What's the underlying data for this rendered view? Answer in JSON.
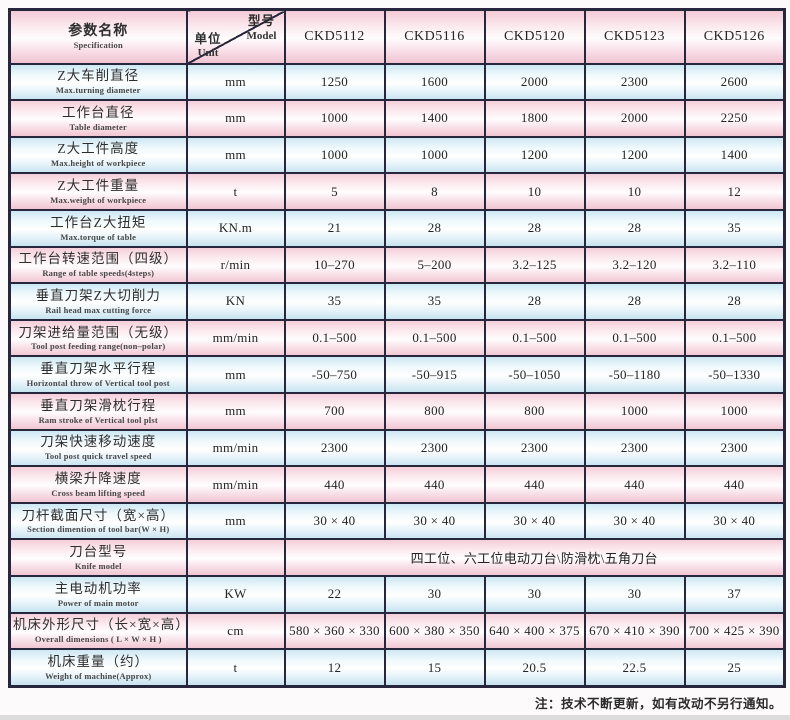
{
  "header": {
    "param_title_cn": "参数名称",
    "param_title_en": "Specification",
    "corner_top_cn": "型号",
    "corner_top_en": "Model",
    "corner_bottom_cn": "单位",
    "corner_bottom_en": "Unit",
    "models": [
      "CKD5112",
      "CKD5116",
      "CKD5120",
      "CKD5123",
      "CKD5126"
    ]
  },
  "rows": [
    {
      "cn": "Z大车削直径",
      "en": "Max.turning diameter",
      "unit": "mm",
      "values": [
        "1250",
        "1600",
        "2000",
        "2300",
        "2600"
      ]
    },
    {
      "cn": "工作台直径",
      "en": "Table diameter",
      "unit": "mm",
      "values": [
        "1000",
        "1400",
        "1800",
        "2000",
        "2250"
      ]
    },
    {
      "cn": "Z大工件高度",
      "en": "Max.height of workpiece",
      "unit": "mm",
      "values": [
        "1000",
        "1000",
        "1200",
        "1200",
        "1400"
      ]
    },
    {
      "cn": "Z大工件重量",
      "en": "Max.weight of workpiece",
      "unit": "t",
      "values": [
        "5",
        "8",
        "10",
        "10",
        "12"
      ]
    },
    {
      "cn": "工作台Z大扭矩",
      "en": "Max.torque of table",
      "unit": "KN.m",
      "values": [
        "21",
        "28",
        "28",
        "28",
        "35"
      ]
    },
    {
      "cn": "工作台转速范围（四级）",
      "en": "Range of table speeds(4steps)",
      "unit": "r/min",
      "values": [
        "10–270",
        "5–200",
        "3.2–125",
        "3.2–120",
        "3.2–110"
      ]
    },
    {
      "cn": "垂直刀架Z大切削力",
      "en": "Rail head max cutting force",
      "unit": "KN",
      "values": [
        "35",
        "35",
        "28",
        "28",
        "28"
      ]
    },
    {
      "cn": "刀架进给量范围（无级）",
      "en": "Tool post feeding range(non–polar)",
      "unit": "mm/min",
      "values": [
        "0.1–500",
        "0.1–500",
        "0.1–500",
        "0.1–500",
        "0.1–500"
      ]
    },
    {
      "cn": "垂直刀架水平行程",
      "en": "Horizontal throw of Vertical tool post",
      "unit": "mm",
      "values": [
        "-50–750",
        "-50–915",
        "-50–1050",
        "-50–1180",
        "-50–1330"
      ]
    },
    {
      "cn": "垂直刀架滑枕行程",
      "en": "Ram stroke of Vertical tool plst",
      "unit": "mm",
      "values": [
        "700",
        "800",
        "800",
        "1000",
        "1000"
      ]
    },
    {
      "cn": "刀架快速移动速度",
      "en": "Tool post quick travel speed",
      "unit": "mm/min",
      "values": [
        "2300",
        "2300",
        "2300",
        "2300",
        "2300"
      ]
    },
    {
      "cn": "横梁升降速度",
      "en": "Cross beam lifting speed",
      "unit": "mm/min",
      "values": [
        "440",
        "440",
        "440",
        "440",
        "440"
      ]
    },
    {
      "cn": "刀杆截面尺寸（宽×高）",
      "en": "Section dimention of tool bar(W × H)",
      "unit": "mm",
      "values": [
        "30 × 40",
        "30 × 40",
        "30 × 40",
        "30 × 40",
        "30 × 40"
      ]
    },
    {
      "cn": "刀台型号",
      "en": "Knife model",
      "unit": "",
      "span": "四工位、六工位电动刀台\\防滑枕\\五角刀台"
    },
    {
      "cn": "主电动机功率",
      "en": "Power of main motor",
      "unit": "KW",
      "values": [
        "22",
        "30",
        "30",
        "30",
        "37"
      ]
    },
    {
      "cn": "机床外形尺寸（长×宽×高）",
      "en": "Overall dimensions ( L × W × H )",
      "unit": "cm",
      "values": [
        "580 × 360 × 330",
        "600 × 380 × 350",
        "640 × 400 × 375",
        "670 × 410 × 390",
        "700 × 425 × 390"
      ]
    },
    {
      "cn": "机床重量（约）",
      "en": "Weight of machine(Approx)",
      "unit": "t",
      "values": [
        "12",
        "15",
        "20.5",
        "22.5",
        "25"
      ]
    }
  ],
  "footnote": "注：技术不断更新，如有改动不另行通知。"
}
